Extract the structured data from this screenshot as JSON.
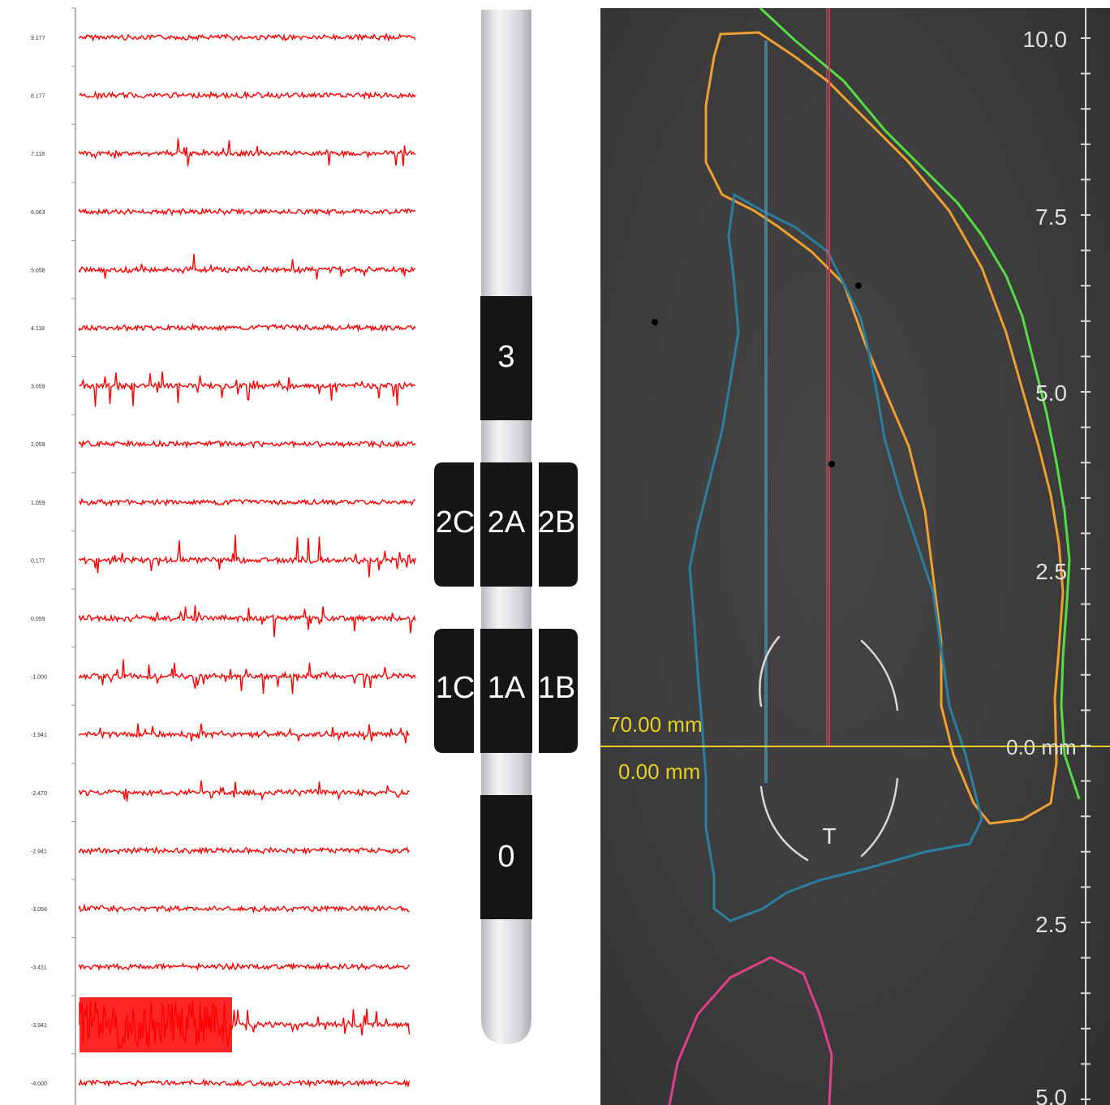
{
  "colors": {
    "trace": "#ff0000",
    "view_background": "#3a3a3a",
    "contour_orange": "#f0a030",
    "contour_green": "#55dd44",
    "contour_blue": "#2a7fa0",
    "contour_pink": "#e0408a",
    "crosshair_yellow": "#e8d020",
    "marker_red": "#e03050",
    "lead_contact": "#151515"
  },
  "traces": {
    "depth_labels": [
      "9.177",
      "8.177",
      "7.118",
      "6.063",
      "5.058",
      "4.118",
      "3.059",
      "2.059",
      "1.059",
      "0.177",
      "0.059",
      "-1.000",
      "-1.941",
      "-2.470",
      "-2.941",
      "-3.058",
      "-3.411",
      "-3.941",
      "-4.000"
    ],
    "activity": [
      1,
      1,
      2,
      1,
      2,
      1,
      4,
      1,
      1,
      4,
      3,
      4,
      2,
      2,
      1,
      1,
      1,
      5,
      1
    ]
  },
  "lead": {
    "contacts": {
      "c3": "3",
      "c2c": "2C",
      "c2a": "2A",
      "c2b": "2B",
      "c1c": "1C",
      "c1a": "1A",
      "c1b": "1B",
      "c0": "0"
    }
  },
  "view": {
    "ruler_labels": [
      "10.0",
      "7.5",
      "5.0",
      "2.5",
      "2.5",
      "5.0"
    ],
    "zero_label": "0.0 mm",
    "distance_top": "70.00 mm",
    "distance_bottom": "0.00 mm",
    "target_label": "T"
  }
}
